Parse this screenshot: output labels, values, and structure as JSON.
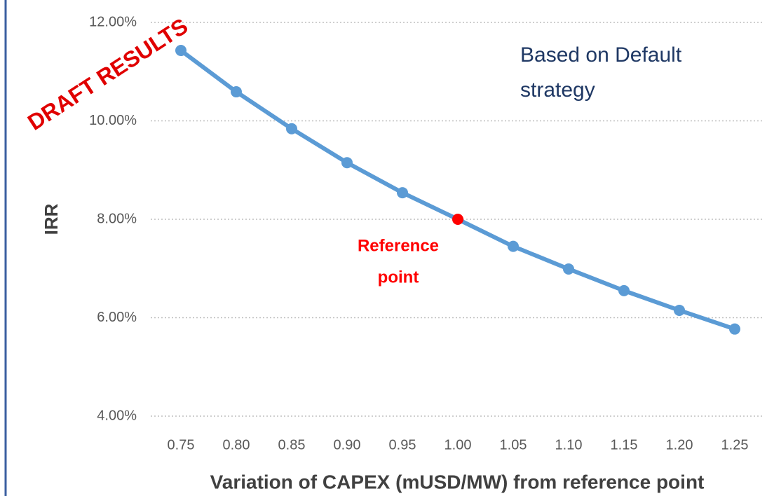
{
  "chart_data": {
    "type": "line",
    "x_label": "Variation of CAPEX (mUSD/MW) from reference point",
    "y_label": "IRR",
    "categories": [
      "0.75",
      "0.80",
      "0.85",
      "0.90",
      "0.95",
      "1.00",
      "1.05",
      "1.10",
      "1.15",
      "1.20",
      "1.25"
    ],
    "series": [
      {
        "name": "IRR",
        "color": "#5b9bd5",
        "values": [
          11.43,
          10.59,
          9.84,
          9.15,
          8.54,
          8.0,
          7.45,
          6.99,
          6.55,
          6.15,
          5.77
        ]
      }
    ],
    "highlight": {
      "index": 5,
      "color": "#ff0000"
    },
    "ylim": [
      4,
      12
    ],
    "yticks": [
      {
        "value": 4,
        "label": "4.00%"
      },
      {
        "value": 6,
        "label": "6.00%"
      },
      {
        "value": 8,
        "label": "8.00%"
      },
      {
        "value": 10,
        "label": "10.00%"
      },
      {
        "value": 12,
        "label": "12.00%"
      }
    ],
    "grid": true,
    "annotations": {
      "watermark": "DRAFT RESULTS",
      "note": [
        "Based on Default",
        "strategy"
      ],
      "reference": [
        "Reference",
        "point"
      ]
    }
  }
}
